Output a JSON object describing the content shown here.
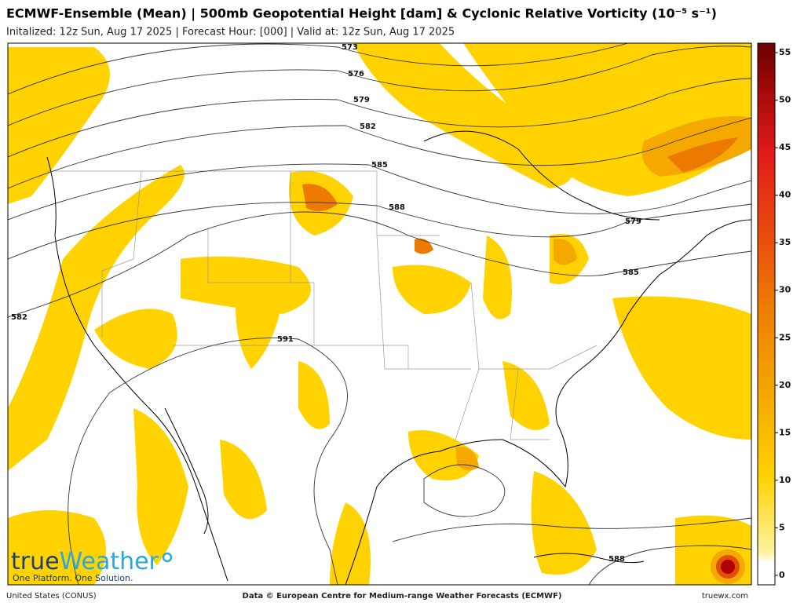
{
  "header": {
    "title": "ECMWF-Ensemble (Mean) | 500mb Geopotential Height [dam] & Cyclonic Relative Vorticity (10⁻⁵ s⁻¹)",
    "subtitle": "Initalized: 12z Sun, Aug 17 2025 | Forecast Hour: [000] | Valid at: 12z Sun, Aug 17 2025"
  },
  "map": {
    "contour_labels": [
      573,
      576,
      579,
      582,
      585,
      588,
      579,
      585,
      582,
      591,
      588
    ]
  },
  "colorbar": {
    "range": [
      -1,
      56
    ],
    "ticks": [
      0,
      5,
      10,
      15,
      20,
      25,
      30,
      35,
      40,
      45,
      50,
      55
    ]
  },
  "logo": {
    "name_true": "true",
    "name_weather": "Weather",
    "tagline": "One Platform. One Solution."
  },
  "footer": {
    "region": "United States (CONUS)",
    "credit": "Data © European Centre for Medium-range Weather Forecasts (ECMWF)",
    "site": "truewx.com"
  }
}
